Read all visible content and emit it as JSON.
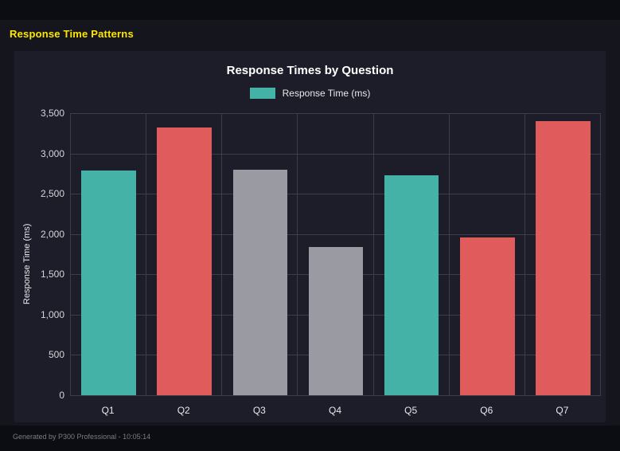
{
  "page": {
    "heading": "Response Time Patterns",
    "footer": "Generated by P300 Professional - 10:05:14"
  },
  "colors": {
    "heading_accent": "#ffe600",
    "panel_background": "#1d1d29",
    "page_background": "#15151e",
    "gridline": "#3d3d4a"
  },
  "chart_data": {
    "type": "bar",
    "title": "Response Times by Question",
    "legend": [
      {
        "label": "Response Time (ms)",
        "color": "#45b2a8"
      }
    ],
    "legend_position": "top",
    "categories": [
      "Q1",
      "Q2",
      "Q3",
      "Q4",
      "Q5",
      "Q6",
      "Q7"
    ],
    "values": [
      2790,
      3320,
      2800,
      1840,
      2730,
      1960,
      3400
    ],
    "bar_colors": [
      "#45b2a8",
      "#e05c5c",
      "#9a9aa2",
      "#9a9aa2",
      "#45b2a8",
      "#e05c5c",
      "#e05c5c"
    ],
    "xlabel": "",
    "ylabel": "Response Time (ms)",
    "ylim": [
      0,
      3500
    ],
    "ytick_step": 500,
    "yticks": [
      "0",
      "500",
      "1,000",
      "1,500",
      "2,000",
      "2,500",
      "3,000",
      "3,500"
    ],
    "grid": true
  }
}
